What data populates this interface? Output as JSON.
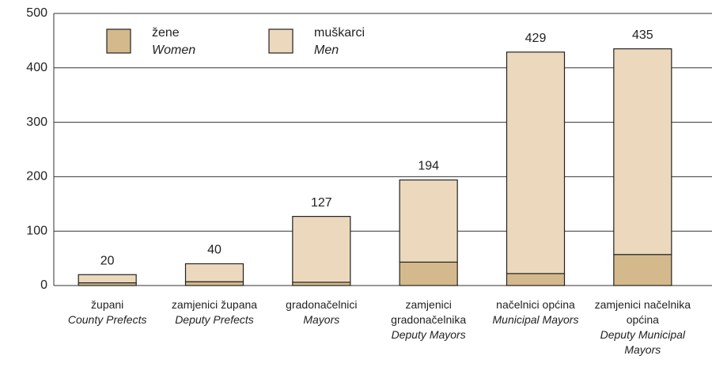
{
  "chart_data": {
    "type": "stacked_bar",
    "categories": [
      "župani",
      "zamjenici župana",
      "gradonačelnici",
      "zamjenici gradonačelnika",
      "načelnici općina",
      "zamjenici načelnika općina"
    ],
    "categories_en": [
      "County Prefects",
      "Deputy Prefects",
      "Mayors",
      "Deputy Mayors",
      "Municipal Mayors",
      "Deputy Municipal Mayors"
    ],
    "series": [
      {
        "name": "žene",
        "name_en": "Women",
        "color": "#d4b98c",
        "values": [
          5,
          7,
          6,
          43,
          22,
          57
        ]
      },
      {
        "name": "muškarci",
        "name_en": "Men",
        "color": "#ecd9bd",
        "values": [
          15,
          33,
          121,
          151,
          407,
          378
        ]
      }
    ],
    "totals": [
      20,
      40,
      127,
      194,
      429,
      435
    ],
    "ylim": [
      0,
      500
    ],
    "yticks": [
      0,
      100,
      200,
      300,
      400,
      500
    ],
    "grid": true
  }
}
